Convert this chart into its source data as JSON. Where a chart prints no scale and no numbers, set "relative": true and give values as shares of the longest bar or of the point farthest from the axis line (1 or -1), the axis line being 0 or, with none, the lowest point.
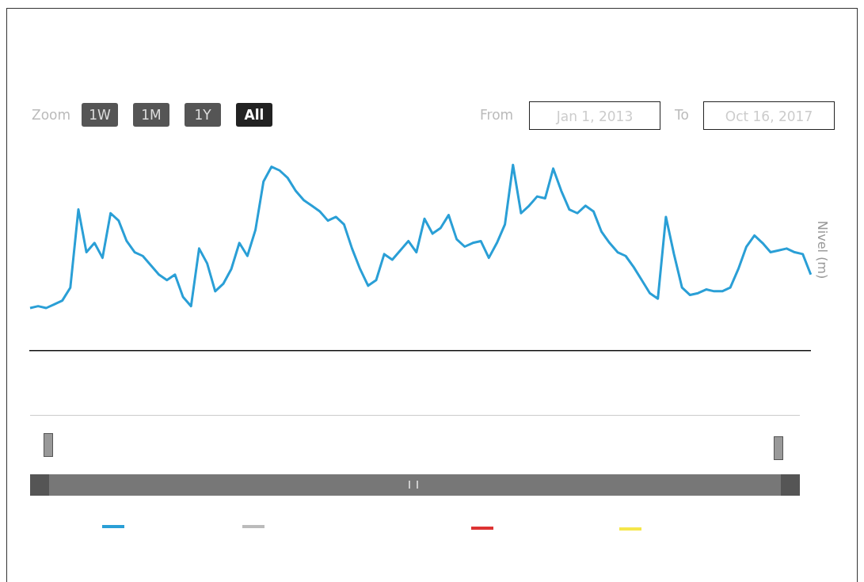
{
  "chart_data": {
    "type": "line",
    "relative": true,
    "ylabel": "Nivel (m)",
    "color": "#2a9fd6",
    "grid": false,
    "legend": false,
    "marker": "none",
    "annotations": [
      "Zoom",
      "1W",
      "1M",
      "1Y",
      "All",
      "From",
      "Jan 1, 2013",
      "To",
      "Oct 16, 2017"
    ],
    "categories": [
      null,
      null,
      null,
      null,
      null,
      null,
      null,
      null,
      null,
      null,
      null,
      null,
      null,
      null,
      null,
      null,
      null,
      null,
      null,
      null,
      null,
      null,
      null,
      null,
      null,
      null,
      null,
      null,
      null,
      null,
      null,
      null,
      null,
      null,
      null,
      null,
      null,
      null,
      null,
      null,
      null,
      null,
      null,
      null,
      null,
      null,
      null,
      null,
      null,
      null,
      null,
      null,
      null,
      null,
      null,
      null,
      null,
      null,
      null,
      null,
      null,
      null,
      null,
      null,
      null,
      null,
      null,
      null,
      null,
      null,
      null,
      null,
      null,
      null,
      null,
      null,
      null,
      null,
      null,
      null,
      null,
      null,
      null,
      null,
      null,
      null,
      null,
      null,
      null,
      null,
      null,
      null,
      null,
      null,
      null,
      null,
      null,
      null
    ],
    "values": [
      0.23,
      0.24,
      0.23,
      0.25,
      0.27,
      0.34,
      0.76,
      0.53,
      0.58,
      0.5,
      0.74,
      0.7,
      0.59,
      0.53,
      0.51,
      0.46,
      0.41,
      0.38,
      0.41,
      0.29,
      0.24,
      0.55,
      0.47,
      0.32,
      0.36,
      0.44,
      0.58,
      0.51,
      0.65,
      0.91,
      0.99,
      0.97,
      0.93,
      0.86,
      0.81,
      0.78,
      0.75,
      0.7,
      0.72,
      0.68,
      0.55,
      0.44,
      0.35,
      0.38,
      0.52,
      0.49,
      0.54,
      0.59,
      0.53,
      0.71,
      0.63,
      0.66,
      0.73,
      0.6,
      0.56,
      0.58,
      0.59,
      0.5,
      0.58,
      0.68,
      1,
      0.74,
      0.78,
      0.83,
      0.82,
      0.98,
      0.86,
      0.76,
      0.74,
      0.78,
      0.75,
      0.64,
      0.58,
      0.53,
      0.51,
      0.45,
      0.38,
      0.31,
      0.28,
      0.72,
      0.52,
      0.34,
      0.3,
      0.31,
      0.33,
      0.32,
      0.32,
      0.34,
      0.44,
      0.56,
      0.62,
      0.58,
      0.53,
      0.54,
      0.55,
      0.53,
      0.52,
      0.41
    ]
  }
}
